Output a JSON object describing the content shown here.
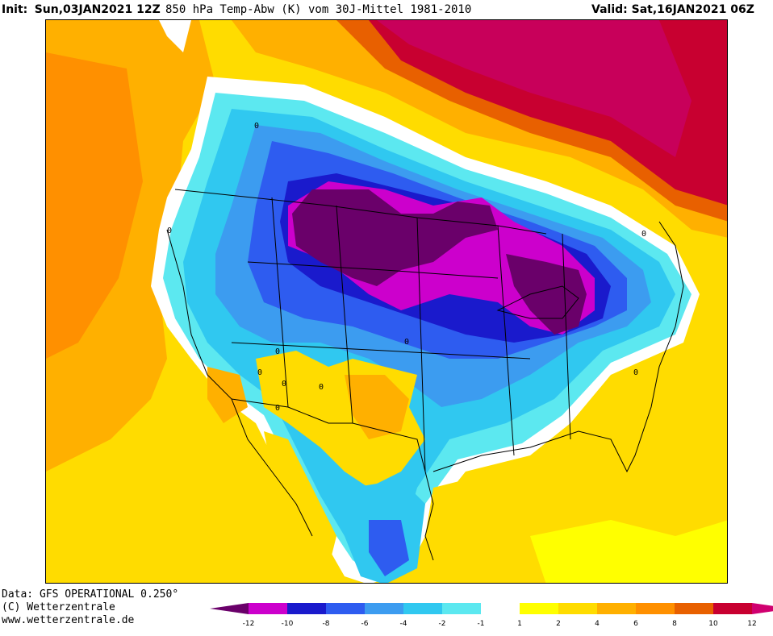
{
  "header": {
    "init_label": "Init:",
    "init_value": "Sun,03JAN2021 12Z",
    "title": "850 hPa Temp-Abw (K) vom 30J-Mittel 1981-2010",
    "valid_label": "Valid:",
    "valid_value": "Sat,16JAN2021 06Z"
  },
  "footer": {
    "data_line": "Data: GFS OPERATIONAL 0.250°",
    "copyright": "(C) Wetterzentrale",
    "url": "www.wetterzentrale.de"
  },
  "contour_labels": [
    "0",
    "0",
    "0",
    "0",
    "0",
    "0",
    "0",
    "0",
    "0",
    "0"
  ],
  "colorbar": {
    "ticks": [
      "-12",
      "-10",
      "-8",
      "-6",
      "-4",
      "-2",
      "-1",
      "1",
      "2",
      "4",
      "6",
      "8",
      "10",
      "12"
    ],
    "colors": [
      "#6a006a",
      "#cc00cc",
      "#1a1acc",
      "#2e5cf0",
      "#3c9cf0",
      "#30c8f0",
      "#5ce8f0",
      "#ffffff",
      "#ffff00",
      "#ffdc00",
      "#ffb000",
      "#ff9000",
      "#e86000",
      "#c80030",
      "#d00070"
    ]
  }
}
